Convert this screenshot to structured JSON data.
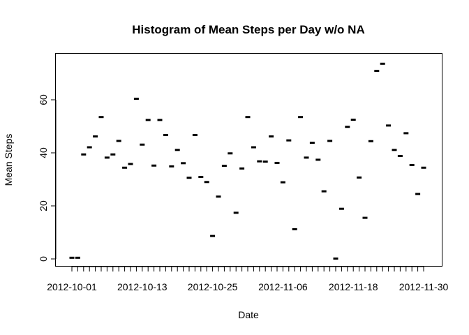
{
  "chart_data": {
    "type": "histogram",
    "title": "Histogram of Mean Steps per Day w/o NA",
    "xlabel": "Date",
    "ylabel": "Mean Steps",
    "x_start_date": "2012-10-01",
    "x_range": [
      0,
      60
    ],
    "ylim": [
      0,
      75
    ],
    "x_ticks": [
      0,
      12,
      24,
      36,
      48,
      60
    ],
    "x_tick_labels": [
      "2012-10-01",
      "2012-10-13",
      "2012-10-25",
      "2012-11-06",
      "2012-11-18",
      "2012-11-30"
    ],
    "y_ticks": [
      0,
      20,
      40,
      60
    ],
    "y_tick_labels": [
      "0",
      "20",
      "40",
      "60"
    ],
    "grid": false,
    "values": [
      0.44,
      0.44,
      39.4,
      42.1,
      46.2,
      53.5,
      38.2,
      39.4,
      44.5,
      34.4,
      35.8,
      60.4,
      43.1,
      52.4,
      35.2,
      52.4,
      46.7,
      34.9,
      41.1,
      36.1,
      30.6,
      46.7,
      30.9,
      29.0,
      8.65,
      23.5,
      35.1,
      39.8,
      17.4,
      34.1,
      53.5,
      42.1,
      36.8,
      36.7,
      46.2,
      36.2,
      28.9,
      44.7,
      11.2,
      53.5,
      38.2,
      43.8,
      37.4,
      25.5,
      44.5,
      0.14,
      18.9,
      49.8,
      52.5,
      30.7,
      15.5,
      44.4,
      70.9,
      73.6,
      50.3,
      41.1,
      38.8,
      47.4,
      35.4,
      24.5,
      34.4
    ]
  }
}
